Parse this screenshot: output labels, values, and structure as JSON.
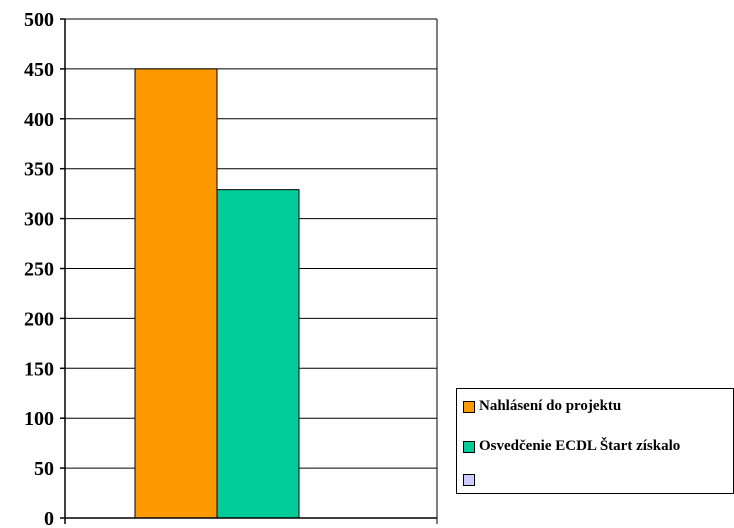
{
  "chart_data": {
    "type": "bar",
    "categories": [
      ""
    ],
    "series": [
      {
        "name": "Nahlásení do projektu",
        "values": [
          450
        ],
        "color": "#FF9900"
      },
      {
        "name": "Osvedčenie ECDL Štart získalo",
        "values": [
          329
        ],
        "color": "#00CC99"
      },
      {
        "name": "",
        "values": [
          null
        ],
        "color": "#CCCCFF"
      }
    ],
    "ylim": [
      0,
      500
    ],
    "yticks": [
      "0",
      "50",
      "100",
      "150",
      "200",
      "250",
      "300",
      "350",
      "400",
      "450",
      "500"
    ],
    "grid": true,
    "legend_position": "right"
  }
}
